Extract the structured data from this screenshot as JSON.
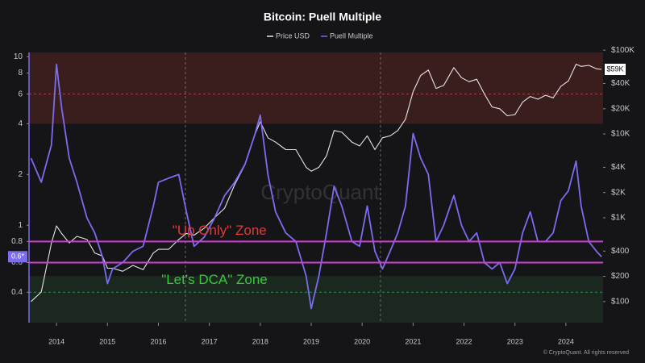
{
  "chart_data": {
    "type": "line",
    "title": "Bitcoin: Puell Multiple",
    "watermark": "CryptoQuant",
    "footer": "© CryptoQuant. All rights reserved",
    "log_y": true,
    "log_y2": true,
    "x": [
      2013.5,
      2013.7,
      2013.9,
      2014.0,
      2014.1,
      2014.25,
      2014.4,
      2014.6,
      2014.75,
      2014.9,
      2015.0,
      2015.1,
      2015.3,
      2015.5,
      2015.7,
      2015.9,
      2016.0,
      2016.2,
      2016.4,
      2016.55,
      2016.7,
      2016.9,
      2017.1,
      2017.3,
      2017.5,
      2017.7,
      2017.9,
      2018.0,
      2018.15,
      2018.3,
      2018.5,
      2018.7,
      2018.9,
      2019.0,
      2019.15,
      2019.3,
      2019.45,
      2019.6,
      2019.8,
      2019.95,
      2020.1,
      2020.25,
      2020.4,
      2020.55,
      2020.7,
      2020.85,
      2021.0,
      2021.15,
      2021.3,
      2021.45,
      2021.6,
      2021.8,
      2021.95,
      2022.1,
      2022.25,
      2022.4,
      2022.55,
      2022.7,
      2022.85,
      2023.0,
      2023.15,
      2023.3,
      2023.45,
      2023.6,
      2023.75,
      2023.9,
      2024.05,
      2024.2,
      2024.3,
      2024.45,
      2024.6,
      2024.7
    ],
    "series": [
      {
        "name": "Price USD",
        "color": "#e6e6e6",
        "axis": "y2",
        "values": [
          100,
          130,
          500,
          800,
          650,
          500,
          600,
          550,
          380,
          350,
          250,
          250,
          230,
          270,
          240,
          380,
          420,
          420,
          550,
          650,
          620,
          750,
          1000,
          1300,
          2500,
          4300,
          10000,
          14000,
          9000,
          8000,
          6500,
          6500,
          4000,
          3600,
          4000,
          5500,
          11000,
          10500,
          8000,
          7200,
          9500,
          6500,
          9000,
          9500,
          11000,
          15000,
          32000,
          50000,
          58000,
          35000,
          38000,
          62000,
          47000,
          42000,
          45000,
          30000,
          21000,
          20000,
          16500,
          17000,
          24000,
          28000,
          26000,
          29000,
          27000,
          37000,
          43000,
          68000,
          64000,
          66000,
          60000,
          59000
        ]
      },
      {
        "name": "Puell Multiple",
        "color": "#7b6cf0",
        "axis": "y",
        "values": [
          2.5,
          1.8,
          3.0,
          9.0,
          5,
          2.5,
          1.8,
          1.1,
          0.9,
          0.65,
          0.45,
          0.55,
          0.6,
          0.7,
          0.75,
          1.3,
          1.8,
          1.9,
          2.0,
          1.2,
          0.75,
          0.85,
          1.1,
          1.5,
          1.8,
          2.3,
          3.5,
          4.5,
          2.0,
          1.2,
          0.9,
          0.8,
          0.5,
          0.32,
          0.5,
          0.9,
          1.7,
          1.3,
          0.8,
          0.75,
          1.3,
          0.7,
          0.55,
          0.7,
          0.9,
          1.3,
          3.5,
          2.5,
          2.0,
          0.8,
          1.0,
          1.5,
          1.0,
          0.8,
          0.9,
          0.6,
          0.55,
          0.6,
          0.45,
          0.55,
          0.9,
          1.2,
          0.8,
          0.8,
          0.9,
          1.4,
          1.6,
          2.4,
          1.3,
          0.8,
          0.7,
          0.65
        ]
      }
    ],
    "xlim": [
      2013.46,
      2024.73
    ],
    "xticks": [
      2014,
      2015,
      2016,
      2017,
      2018,
      2019,
      2020,
      2021,
      2022,
      2023,
      2024
    ],
    "ylim": [
      0.264,
      10.6
    ],
    "yticks": [
      0.4,
      0.6,
      0.8,
      1,
      2,
      4,
      6,
      8,
      10
    ],
    "y2lim": [
      56,
      94000
    ],
    "y2ticks": [
      {
        "value": 100,
        "label": "$100"
      },
      {
        "value": 200,
        "label": "$200"
      },
      {
        "value": 400,
        "label": "$400"
      },
      {
        "value": 1000,
        "label": "$1K"
      },
      {
        "value": 2000,
        "label": "$2K"
      },
      {
        "value": 4000,
        "label": "$4K"
      },
      {
        "value": 10000,
        "label": "$10K"
      },
      {
        "value": 20000,
        "label": "$20K"
      },
      {
        "value": 40000,
        "label": "$40K"
      },
      {
        "value": 100000,
        "label": "$100K"
      }
    ],
    "zones": [
      {
        "from": 4,
        "to": 10.6,
        "color": "#3a1e1e"
      },
      {
        "from": 0.264,
        "to": 0.5,
        "color": "#1b2820"
      }
    ],
    "zone_lines": [
      {
        "value": 6,
        "color": "#a04848"
      },
      {
        "value": 0.4,
        "color": "#3a8a4a"
      }
    ],
    "band": {
      "from": 0.6,
      "to": 0.8,
      "color": "#d040d0"
    },
    "halvings": [
      2016.53,
      2020.36
    ],
    "annotations": [
      {
        "text": "\"Up Only\" Zone",
        "x": 2017.2,
        "y": 0.92,
        "color": "#e03a3a"
      },
      {
        "text": "\"Let's DCA\" Zone",
        "x": 2017.1,
        "y": 0.47,
        "color": "#3ac83a"
      }
    ],
    "current_labels": [
      {
        "axis": "y2",
        "value": 59000,
        "label": "$59K"
      },
      {
        "axis": "y",
        "value": 0.65,
        "label": "0.6*"
      }
    ]
  }
}
